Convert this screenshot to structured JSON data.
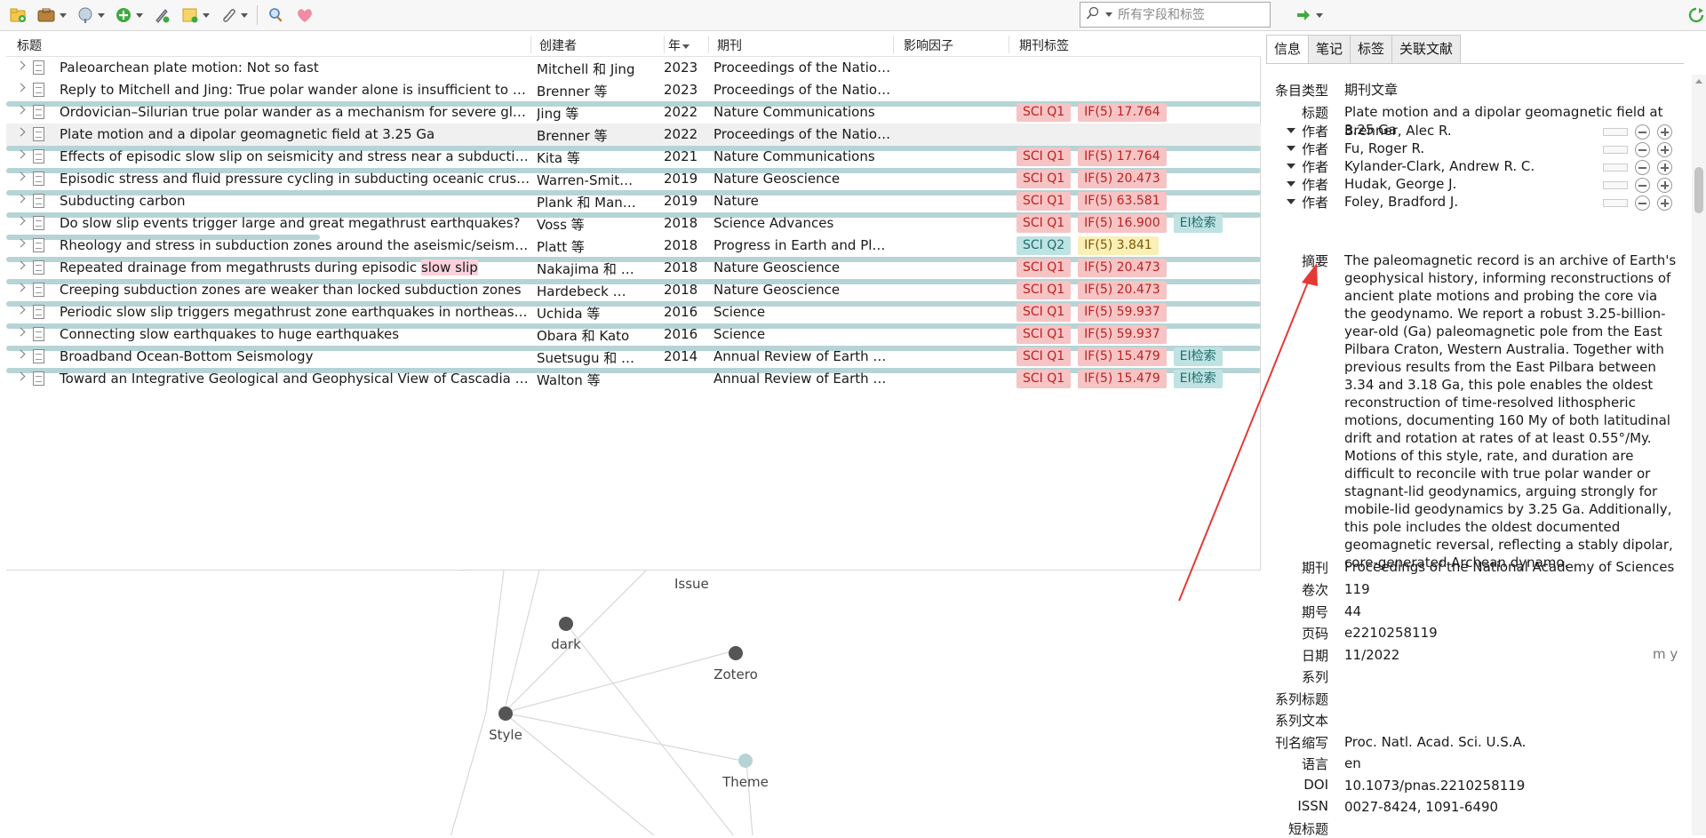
{
  "toolbar": {
    "search_placeholder": "所有字段和标签",
    "icons": [
      "new-collection-icon",
      "new-item-icon",
      "add-by-identifier-icon",
      "add-attachment-icon",
      "annotate-icon",
      "new-note-icon",
      "attach-icon",
      "locate-icon",
      "zotero-logo-icon",
      "forward-icon",
      "sync-icon"
    ]
  },
  "columns": {
    "title": "标题",
    "creator": "创建者",
    "year": "年",
    "publication": "期刊",
    "impact": "影响因子",
    "tags": "期刊标签"
  },
  "items": [
    {
      "title": "Paleoarchean plate motion: Not so fast",
      "creator": "Mitchell 和 Jing",
      "year": "2023",
      "publication": "Proceedings of the National Academy of Sciences",
      "if_fill": 0.0,
      "tags": []
    },
    {
      "title": "Reply to Mitchell and Jing: True polar wander alone is insufficient to drive",
      "creator": "Brenner 等",
      "year": "2023",
      "publication": "Proceedings of the National Academy of Sciences",
      "if_fill": 0.0,
      "tags": []
    },
    {
      "title": "Ordovician–Silurian true polar wander as a mechanism for severe glaciation",
      "creator": "Jing 等",
      "year": "2022",
      "publication": "Nature Communications",
      "if_fill": 1.0,
      "tags": [
        {
          "text": "SCI Q1",
          "style": "q1"
        },
        {
          "text": "IF(5) 17.764",
          "style": "ifr"
        }
      ]
    },
    {
      "title": "Plate motion and a dipolar geomagnetic field at 3.25 Ga",
      "creator": "Brenner 等",
      "year": "2022",
      "publication": "Proceedings of the National Academy of Sciences",
      "if_fill": 0.0,
      "selected": true,
      "tags": []
    },
    {
      "title": "Effects of episodic slow slip on seismicity and stress near a subduction-zone",
      "creator": "Kita 等",
      "year": "2021",
      "publication": "Nature Communications",
      "if_fill": 1.0,
      "tags": [
        {
          "text": "SCI Q1",
          "style": "q1"
        },
        {
          "text": "IF(5) 17.764",
          "style": "ifr"
        }
      ]
    },
    {
      "title": "Episodic stress and fluid pressure cycling in subducting oceanic crust during",
      "creator": "Warren-Smith 等",
      "year": "2019",
      "publication": "Nature Geoscience",
      "if_fill": 1.0,
      "tags": [
        {
          "text": "SCI Q1",
          "style": "q1"
        },
        {
          "text": "IF(5) 20.473",
          "style": "ifr"
        }
      ]
    },
    {
      "title": "Subducting carbon",
      "creator": "Plank 和 Manning",
      "year": "2019",
      "publication": "Nature",
      "if_fill": 1.0,
      "tags": [
        {
          "text": "SCI Q1",
          "style": "q1"
        },
        {
          "text": "IF(5) 63.581",
          "style": "ifr"
        }
      ]
    },
    {
      "title": "Do slow slip events trigger large and great megathrust earthquakes?",
      "creator": "Voss 等",
      "year": "2018",
      "publication": "Science Advances",
      "if_fill": 1.0,
      "tags": [
        {
          "text": "SCI Q1",
          "style": "q1"
        },
        {
          "text": "IF(5) 16.900",
          "style": "ifr"
        },
        {
          "text": "EI检索",
          "style": "ei"
        }
      ]
    },
    {
      "title": "Rheology and stress in subduction zones around the aseismic/seismic transition",
      "creator": "Platt 等",
      "year": "2018",
      "publication": "Progress in Earth and Planetary Science",
      "if_fill": 0.25,
      "tags": [
        {
          "text": "SCI Q2",
          "style": "q2"
        },
        {
          "text": "IF(5) 3.841",
          "style": "ify"
        }
      ]
    },
    {
      "title_pre": "Repeated drainage from megathrusts during episodic ",
      "title_hl": "slow slip",
      "creator": "Nakajima 和 Uchida",
      "year": "2018",
      "publication": "Nature Geoscience",
      "if_fill": 1.0,
      "tags": [
        {
          "text": "SCI Q1",
          "style": "q1"
        },
        {
          "text": "IF(5) 20.473",
          "style": "ifr"
        }
      ]
    },
    {
      "title": "Creeping subduction zones are weaker than locked subduction zones",
      "creator": "Hardebeck 和 Loveless",
      "year": "2018",
      "publication": "Nature Geoscience",
      "if_fill": 1.0,
      "tags": [
        {
          "text": "SCI Q1",
          "style": "q1"
        },
        {
          "text": "IF(5) 20.473",
          "style": "ifr"
        }
      ]
    },
    {
      "title": "Periodic slow slip triggers megathrust zone earthquakes in northeastern Japan",
      "creator": "Uchida 等",
      "year": "2016",
      "publication": "Science",
      "if_fill": 1.0,
      "tags": [
        {
          "text": "SCI Q1",
          "style": "q1"
        },
        {
          "text": "IF(5) 59.937",
          "style": "ifr"
        }
      ]
    },
    {
      "title": "Connecting slow earthquakes to huge earthquakes",
      "creator": "Obara 和 Kato",
      "year": "2016",
      "publication": "Science",
      "if_fill": 1.0,
      "tags": [
        {
          "text": "SCI Q1",
          "style": "q1"
        },
        {
          "text": "IF(5) 59.937",
          "style": "ifr"
        }
      ]
    },
    {
      "title": "Broadband Ocean-Bottom Seismology",
      "creator": "Suetsugu 和 Shiobara",
      "year": "2014",
      "publication": "Annual Review of Earth and Planetary Sciences",
      "if_fill": 1.0,
      "tags": [
        {
          "text": "SCI Q1",
          "style": "q1"
        },
        {
          "text": "IF(5) 15.479",
          "style": "ifr"
        },
        {
          "text": "EI检索",
          "style": "ei"
        }
      ]
    },
    {
      "title": "Toward an Integrative Geological and Geophysical View of Cascadia Subduction",
      "creator": "Walton 等",
      "year": "",
      "publication": "Annual Review of Earth and Planetary Sciences",
      "if_fill": 1.0,
      "tags": [
        {
          "text": "SCI Q1",
          "style": "q1"
        },
        {
          "text": "IF(5) 15.479",
          "style": "ifr"
        },
        {
          "text": "EI检索",
          "style": "ei"
        }
      ]
    }
  ],
  "graph": {
    "nodes": [
      {
        "label": "Issue",
        "color": "#555"
      },
      {
        "label": "dark",
        "color": "#555"
      },
      {
        "label": "Zotero",
        "color": "#555"
      },
      {
        "label": "Style",
        "color": "#555"
      },
      {
        "label": "Theme",
        "color": "#b6d4d6"
      }
    ]
  },
  "right": {
    "tabs": [
      "信息",
      "笔记",
      "标签",
      "关联文献"
    ],
    "fields": {
      "item_type_label": "条目类型",
      "item_type": "期刊文章",
      "title_label": "标题",
      "title": "Plate motion and a dipolar geomagnetic field at 3.25 Ga",
      "author_label": "作者",
      "authors": [
        "Brenner, Alec R.",
        "Fu, Roger R.",
        "Kylander-Clark, Andrew R. C.",
        "Hudak, George J.",
        "Foley, Bradford J."
      ],
      "abstract_label": "摘要",
      "abstract": "The paleomagnetic record is an archive of Earth's geophysical history, informing reconstructions of ancient plate motions and probing the core via the geodynamo. We report a robust 3.25-billion-year-old (Ga) paleomagnetic pole from the East Pilbara Craton, Western Australia. Together with previous results from the East Pilbara between 3.34 and 3.18 Ga, this pole enables the oldest reconstruction of time-resolved lithospheric motions, documenting 160 My of both latitudinal drift and rotation at rates of at least 0.55°/My. Motions of this style, rate, and duration are difficult to reconcile with true polar wander or stagnant-lid geodynamics, arguing strongly for mobile-lid geodynamics by 3.25 Ga. Additionally, this pole includes the oldest documented geomagnetic reversal, reflecting a stably dipolar, core-generated Archean dynamo.",
      "publication_label": "期刊",
      "publication": "Proceedings of the National Academy of Sciences",
      "volume_label": "卷次",
      "volume": "119",
      "issue_label": "期号",
      "issue": "44",
      "pages_label": "页码",
      "pages": "e2210258119",
      "date_label": "日期",
      "date": "11/2022",
      "date_hint": "m y",
      "series_label": "系列",
      "series_title_label": "系列标题",
      "series_text_label": "系列文本",
      "journal_abbr_label": "刊名缩写",
      "journal_abbr": "Proc. Natl. Acad. Sci. U.S.A.",
      "language_label": "语言",
      "language": "en",
      "doi_label": "DOI",
      "doi": "10.1073/pnas.2210258119",
      "issn_label": "ISSN",
      "issn": "0027-8424, 1091-6490",
      "short_title_label": "短标题"
    }
  },
  "colors": {
    "annotation_arrow": "#e53935",
    "accent_red": "#f6c4c4",
    "accent_teal": "#bfe2e2"
  }
}
